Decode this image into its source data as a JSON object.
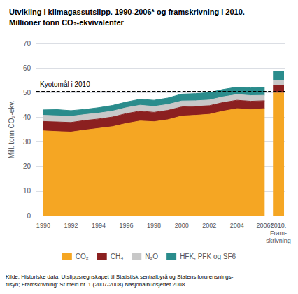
{
  "chart_data": {
    "type": "area",
    "title": "Utvikling i klimagassutslipp. 1990-2006* og framskrivning i 2010.",
    "subtitle": "Millioner tonn CO₂-ekvivalenter",
    "ylabel": "Mill. tonn CO₂-ekv.",
    "source": "Kilde: Historiske data: Utslippsregnskapet til Statistisk sentralbyrå og Statens forurensnings-\ntilsyn; Framskrivning: St.meld nr. 1 (2007-2008) Nasjonalbudsjettet 2008.",
    "categories": [
      "1990",
      null,
      "1992",
      null,
      "1994",
      null,
      "1996",
      null,
      "1998",
      null,
      "2000",
      null,
      "2002",
      null,
      "2004",
      null,
      "2006*",
      "2010.\nFram-\nskrivning"
    ],
    "series": [
      {
        "name": "CO₂",
        "type": "area",
        "color": "#F5A623",
        "values": [
          34.5,
          34.2,
          34.0,
          34.8,
          35.5,
          36.2,
          37.5,
          38.5,
          38.2,
          39.0,
          40.5,
          40.8,
          41.2,
          42.5,
          43.5,
          43.2,
          43.5,
          null
        ]
      },
      {
        "name": "CH₄",
        "type": "area",
        "color": "#8B2020",
        "values": [
          3.8,
          3.9,
          3.9,
          3.9,
          3.8,
          3.9,
          4.0,
          4.0,
          3.8,
          3.8,
          3.7,
          3.6,
          3.5,
          3.5,
          3.4,
          3.3,
          3.2,
          null
        ]
      },
      {
        "name": "N₂O",
        "type": "area",
        "color": "#C8C8C8",
        "values": [
          2.5,
          2.5,
          2.5,
          2.4,
          2.4,
          2.4,
          2.4,
          2.4,
          2.4,
          2.4,
          2.4,
          2.3,
          2.3,
          2.3,
          2.3,
          2.3,
          2.2,
          null
        ]
      },
      {
        "name": "HFK, PFK og SF6",
        "type": "area",
        "color": "#2A8C8C",
        "values": [
          2.2,
          2.5,
          2.3,
          2.1,
          2.2,
          2.3,
          2.3,
          2.4,
          2.5,
          2.6,
          2.8,
          2.9,
          3.0,
          3.0,
          3.0,
          3.1,
          3.3,
          null
        ]
      },
      {
        "name": "CO₂",
        "type": "bar",
        "color": "#F5A623",
        "values": [
          null,
          null,
          null,
          null,
          null,
          null,
          null,
          null,
          null,
          null,
          null,
          null,
          null,
          null,
          null,
          null,
          null,
          50.0
        ]
      },
      {
        "name": "CH₄",
        "type": "bar",
        "color": "#8B2020",
        "values": [
          null,
          null,
          null,
          null,
          null,
          null,
          null,
          null,
          null,
          null,
          null,
          null,
          null,
          null,
          null,
          null,
          null,
          3.0
        ]
      },
      {
        "name": "N₂O",
        "type": "bar",
        "color": "#C8C8C8",
        "values": [
          null,
          null,
          null,
          null,
          null,
          null,
          null,
          null,
          null,
          null,
          null,
          null,
          null,
          null,
          null,
          null,
          null,
          2.2
        ]
      },
      {
        "name": "HFK, PFK og SF6",
        "type": "bar",
        "color": "#2A8C8C",
        "values": [
          null,
          null,
          null,
          null,
          null,
          null,
          null,
          null,
          null,
          null,
          null,
          null,
          null,
          null,
          null,
          null,
          null,
          3.5
        ]
      }
    ],
    "annotations": [
      {
        "text": "Kyotomål i 2010",
        "y": 50.5,
        "line_style": "dashed"
      }
    ],
    "stacked": true,
    "ylim": [
      0,
      70
    ],
    "yticks": [
      0,
      10,
      20,
      30,
      40,
      50,
      60,
      70
    ],
    "grid": true,
    "legend": "bottom"
  }
}
